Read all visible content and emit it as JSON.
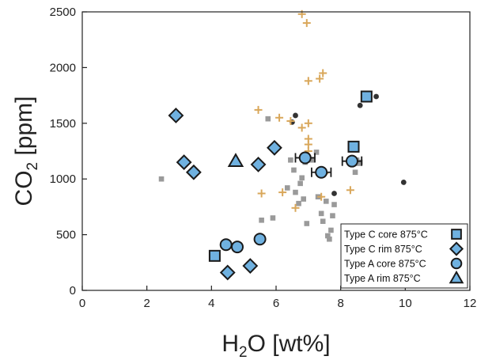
{
  "chart_data": {
    "type": "scatter",
    "title": "",
    "xlabel": {
      "main": "H",
      "sub": "2",
      "rest": "O [wt%]"
    },
    "ylabel": {
      "main": "CO",
      "sub": "2",
      "rest": " [ppm]"
    },
    "xlim": [
      0,
      12
    ],
    "ylim": [
      0,
      2500
    ],
    "xticks": [
      0,
      2,
      4,
      6,
      8,
      10,
      12
    ],
    "yticks": [
      0,
      500,
      1000,
      1500,
      2000,
      2500
    ],
    "grid": false,
    "legend_position": "bottom-right",
    "colors": {
      "accent": "#6fb1e0",
      "background_gray": "#9a9a9a",
      "background_dark": "#333333",
      "background_plus": "#d9a75a"
    },
    "background_series": [
      {
        "marker": "square-small",
        "color": "#9a9a9a",
        "points": [
          [
            2.45,
            1000
          ],
          [
            4.8,
            1140
          ],
          [
            5.55,
            630
          ],
          [
            5.75,
            1540
          ],
          [
            5.9,
            650
          ],
          [
            6.35,
            920
          ],
          [
            6.45,
            1170
          ],
          [
            6.55,
            1080
          ],
          [
            6.6,
            880
          ],
          [
            6.7,
            780
          ],
          [
            6.75,
            960
          ],
          [
            6.8,
            1010
          ],
          [
            6.85,
            820
          ],
          [
            6.9,
            1150
          ],
          [
            6.95,
            600
          ],
          [
            7.1,
            1170
          ],
          [
            7.25,
            1240
          ],
          [
            7.3,
            840
          ],
          [
            7.4,
            690
          ],
          [
            7.45,
            620
          ],
          [
            7.55,
            800
          ],
          [
            7.6,
            490
          ],
          [
            7.65,
            460
          ],
          [
            7.7,
            540
          ],
          [
            7.75,
            670
          ],
          [
            7.8,
            770
          ],
          [
            8.45,
            1060
          ],
          [
            8.5,
            1170
          ],
          [
            8.55,
            1140
          ],
          [
            8.6,
            1150
          ]
        ]
      },
      {
        "marker": "circle-small",
        "color": "#333333",
        "points": [
          [
            6.5,
            1510
          ],
          [
            6.6,
            1570
          ],
          [
            7.8,
            870
          ],
          [
            8.6,
            1660
          ],
          [
            9.1,
            1740
          ],
          [
            9.95,
            970
          ]
        ]
      },
      {
        "marker": "plus",
        "color": "#d9a75a",
        "points": [
          [
            5.45,
            1620
          ],
          [
            5.55,
            870
          ],
          [
            6.1,
            1550
          ],
          [
            6.2,
            880
          ],
          [
            6.45,
            1520
          ],
          [
            6.6,
            740
          ],
          [
            6.8,
            1460
          ],
          [
            6.8,
            2480
          ],
          [
            6.95,
            2400
          ],
          [
            7.0,
            1880
          ],
          [
            7.0,
            1500
          ],
          [
            7.0,
            1360
          ],
          [
            7.0,
            1310
          ],
          [
            7.0,
            1250
          ],
          [
            7.35,
            1900
          ],
          [
            7.4,
            840
          ],
          [
            7.45,
            1950
          ],
          [
            7.5,
            1050
          ],
          [
            8.3,
            900
          ]
        ]
      }
    ],
    "series": [
      {
        "name": "Type C core 875°C",
        "marker": "square",
        "points": [
          [
            4.1,
            310
          ],
          [
            8.4,
            1290
          ],
          [
            8.8,
            1740
          ]
        ]
      },
      {
        "name": "Type C rim 875°C",
        "marker": "diamond",
        "points": [
          [
            2.9,
            1570
          ],
          [
            3.15,
            1150
          ],
          [
            3.45,
            1060
          ],
          [
            4.5,
            160
          ],
          [
            5.2,
            220
          ],
          [
            5.45,
            1130
          ],
          [
            5.95,
            1280
          ]
        ]
      },
      {
        "name": "Type A core 875°C",
        "marker": "circle",
        "points": [
          [
            4.45,
            410
          ],
          [
            4.8,
            390
          ],
          [
            5.5,
            460
          ],
          [
            6.9,
            1190
          ],
          [
            7.4,
            1060
          ],
          [
            8.35,
            1160
          ]
        ],
        "xerr": [
          0,
          0,
          0,
          0.3,
          0.3,
          0.3
        ]
      },
      {
        "name": "Type A rim 875°C",
        "marker": "triangle",
        "points": [
          [
            4.75,
            1160
          ]
        ]
      }
    ]
  }
}
